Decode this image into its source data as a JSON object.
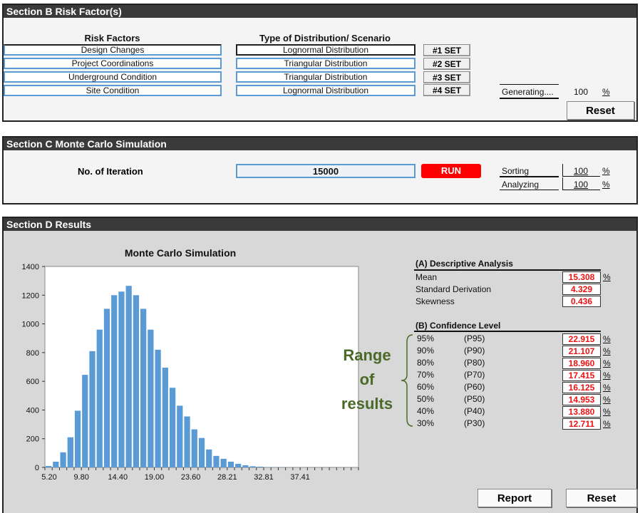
{
  "section_b": {
    "title": "Section B  Risk Factor(s)",
    "col_risk": "Risk Factors",
    "col_dist": "Type of Distribution/ Scenario",
    "rows": [
      {
        "factor": "Design Changes",
        "dist": "Lognormal Distribution",
        "button": "#1 SET"
      },
      {
        "factor": "Project Coordinations",
        "dist": "Triangular Distribution",
        "button": "#2 SET"
      },
      {
        "factor": "Underground Condition",
        "dist": "Triangular Distribution",
        "button": "#3 SET"
      },
      {
        "factor": "Site Condition",
        "dist": "Lognormal Distribution",
        "button": "#4 SET"
      }
    ],
    "generating_label": "Generating....",
    "generating_value": "100",
    "pct": "%",
    "reset": "Reset"
  },
  "section_c": {
    "title": "Section C Monte Carlo Simulation",
    "iteration_label": "No. of Iteration",
    "iteration_value": "15000",
    "run": "RUN",
    "sorting_label": "Sorting",
    "sorting_value": "100",
    "analyzing_label": "Analyzing",
    "analyzing_value": "100",
    "pct": "%"
  },
  "section_d": {
    "title": "Section D Results",
    "descriptive_title": "(A) Descriptive Analysis",
    "descriptive": [
      {
        "label": "Mean",
        "value": "15.308",
        "pct": "%"
      },
      {
        "label": "Standard Derivation",
        "value": "4.329",
        "pct": ""
      },
      {
        "label": "Skewness",
        "value": "0.436",
        "pct": ""
      }
    ],
    "confidence_title": "(B) Confidence Level",
    "confidence": [
      {
        "level": "95%",
        "p": "(P95)",
        "value": "22.915",
        "pct": "%"
      },
      {
        "level": "90%",
        "p": "(P90)",
        "value": "21.107",
        "pct": "%"
      },
      {
        "level": "80%",
        "p": "(P80)",
        "value": "18.960",
        "pct": "%"
      },
      {
        "level": "70%",
        "p": "(P70)",
        "value": "17.415",
        "pct": "%"
      },
      {
        "level": "60%",
        "p": "(P60)",
        "value": "16.125",
        "pct": "%"
      },
      {
        "level": "50%",
        "p": "(P50)",
        "value": "14.953",
        "pct": "%"
      },
      {
        "level": "40%",
        "p": "(P40)",
        "value": "13.880",
        "pct": "%"
      },
      {
        "level": "30%",
        "p": "(P30)",
        "value": "12.711",
        "pct": "%"
      }
    ],
    "range_line1": "Range",
    "range_line2": "of",
    "range_line3": "results",
    "report": "Report",
    "reset": "Reset"
  },
  "colors": {
    "header_bg": "#3a3a3a",
    "bar": "#5b9bd5",
    "run": "#ff0000",
    "value_red": "#e11111",
    "range_green": "#4a6a2a"
  },
  "chart_data": {
    "type": "bar",
    "title": "Monte Carlo Simulation",
    "xlabel": "",
    "ylabel": "",
    "ylim": [
      0,
      1400
    ],
    "yticks": [
      0,
      200,
      400,
      600,
      800,
      1000,
      1200,
      1400
    ],
    "xtick_labels": [
      "5.20",
      "9.80",
      "14.40",
      "19.00",
      "23.60",
      "28.21",
      "32.81",
      "37.41"
    ],
    "values": [
      10,
      40,
      105,
      210,
      395,
      645,
      810,
      960,
      1105,
      1200,
      1225,
      1265,
      1200,
      1105,
      960,
      820,
      695,
      555,
      430,
      355,
      265,
      205,
      125,
      80,
      60,
      40,
      25,
      15,
      8,
      5,
      2,
      1,
      1,
      0,
      0,
      0,
      0,
      0,
      0,
      0,
      0,
      0,
      0
    ],
    "grid": false,
    "legend": "none"
  }
}
